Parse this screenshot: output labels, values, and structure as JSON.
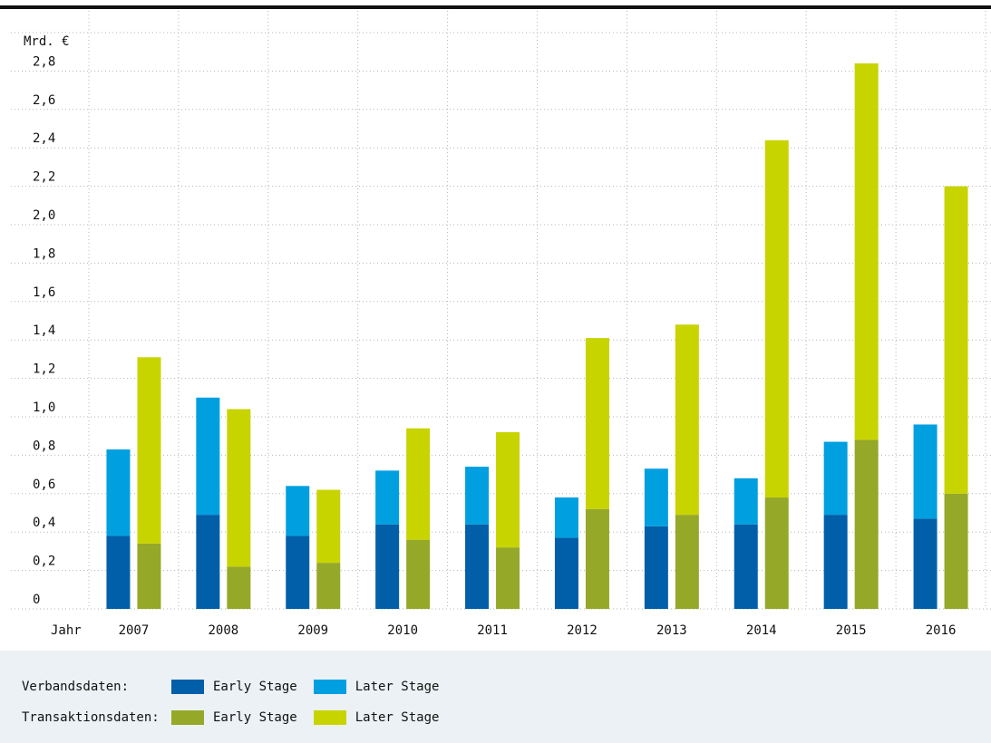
{
  "chart_data": {
    "type": "bar",
    "y_unit_label": "Mrd. €",
    "x_axis_label": "Jahr",
    "categories": [
      "2007",
      "2008",
      "2009",
      "2010",
      "2011",
      "2012",
      "2013",
      "2014",
      "2015",
      "2016"
    ],
    "ylim": [
      0,
      3.0
    ],
    "y_ticks": [
      0,
      0.2,
      0.4,
      0.6,
      0.8,
      1.0,
      1.2,
      1.4,
      1.6,
      1.8,
      2.0,
      2.2,
      2.4,
      2.6,
      2.8
    ],
    "y_tick_labels": [
      "0",
      "0,2",
      "0,4",
      "0,6",
      "0,8",
      "1,0",
      "1,2",
      "1,4",
      "1,6",
      "1,8",
      "2,0",
      "2,2",
      "2,4",
      "2,6",
      "2,8"
    ],
    "grid": true,
    "stacks": [
      {
        "group": "Verbandsdaten",
        "series": [
          {
            "name": "Early Stage",
            "color": "#005fa8",
            "values": [
              0.38,
              0.49,
              0.38,
              0.44,
              0.44,
              0.37,
              0.43,
              0.44,
              0.49,
              0.47
            ]
          },
          {
            "name": "Later Stage",
            "color": "#009fe0",
            "values": [
              0.45,
              0.61,
              0.26,
              0.28,
              0.3,
              0.21,
              0.3,
              0.24,
              0.38,
              0.49
            ]
          }
        ]
      },
      {
        "group": "Transaktionsdaten",
        "series": [
          {
            "name": "Early Stage",
            "color": "#96a828",
            "values": [
              0.34,
              0.22,
              0.24,
              0.36,
              0.32,
              0.52,
              0.49,
              0.58,
              0.88,
              0.6
            ]
          },
          {
            "name": "Later Stage",
            "color": "#c8d400",
            "values": [
              0.97,
              0.82,
              0.38,
              0.58,
              0.6,
              0.89,
              0.99,
              1.86,
              1.96,
              1.6
            ]
          }
        ]
      }
    ]
  },
  "legend": {
    "rows": [
      {
        "label": "Verbandsdaten:",
        "items": [
          {
            "label": "Early Stage",
            "color": "#005fa8"
          },
          {
            "label": "Later Stage",
            "color": "#009fe0"
          }
        ]
      },
      {
        "label": "Transaktionsdaten:",
        "items": [
          {
            "label": "Early Stage",
            "color": "#96a828"
          },
          {
            "label": "Later Stage",
            "color": "#c8d400"
          }
        ]
      }
    ]
  }
}
